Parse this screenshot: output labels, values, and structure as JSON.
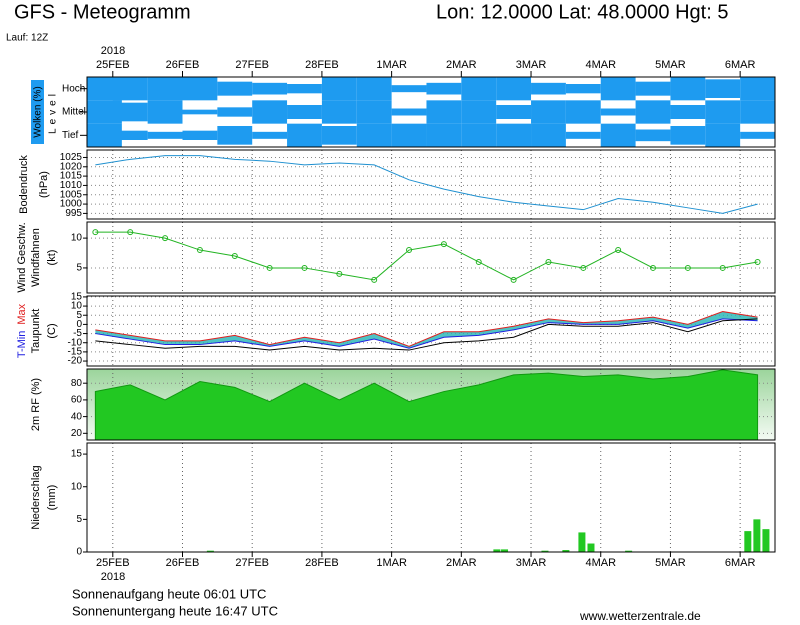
{
  "header": {
    "title": "GFS - Meteogramm",
    "location": "Lon: 12.0000 Lat: 48.0000 Hgt: 5",
    "run": "Lauf: 12Z"
  },
  "time_axis": {
    "year": "2018",
    "xlim": [
      -0.37,
      9.5
    ],
    "xticks": [
      {
        "value": 0,
        "label": "25FEB"
      },
      {
        "value": 1,
        "label": "26FEB"
      },
      {
        "value": 2,
        "label": "27FEB"
      },
      {
        "value": 3,
        "label": "28FEB"
      },
      {
        "value": 4,
        "label": "1MAR"
      },
      {
        "value": 5,
        "label": "2MAR"
      },
      {
        "value": 6,
        "label": "3MAR"
      },
      {
        "value": 7,
        "label": "4MAR"
      },
      {
        "value": 8,
        "label": "5MAR"
      },
      {
        "value": 9,
        "label": "6MAR"
      }
    ]
  },
  "chart_data": [
    {
      "type": "cloud",
      "ylabel": "Wolken (%)",
      "level_label": "Level",
      "color": "#1e9bf0",
      "x": [
        -0.25,
        0.25,
        0.75,
        1.25,
        1.75,
        2.25,
        2.75,
        3.25,
        3.75,
        4.25,
        4.75,
        5.25,
        5.75,
        6.25,
        6.75,
        7.25,
        7.75,
        8.25,
        8.75,
        9.25
      ],
      "series": [
        {
          "name": "Hoch",
          "values": [
            100,
            100,
            100,
            100,
            60,
            50,
            40,
            100,
            100,
            30,
            50,
            100,
            100,
            50,
            40,
            100,
            60,
            100,
            80,
            100
          ]
        },
        {
          "name": "Mittel",
          "values": [
            100,
            80,
            100,
            20,
            40,
            100,
            60,
            100,
            100,
            30,
            100,
            100,
            60,
            100,
            100,
            30,
            100,
            60,
            100,
            100
          ]
        },
        {
          "name": "Tief",
          "values": [
            100,
            40,
            30,
            40,
            80,
            30,
            100,
            80,
            100,
            100,
            100,
            100,
            100,
            100,
            30,
            100,
            50,
            80,
            100,
            30
          ]
        }
      ]
    },
    {
      "type": "line",
      "ylabel": "Bodendruck",
      "unit": "(hPa)",
      "color": "#1e90d0",
      "ylim": [
        992,
        1029
      ],
      "yticks": [
        995,
        1000,
        1005,
        1010,
        1015,
        1020,
        1025
      ],
      "x": [
        -0.25,
        0.25,
        0.75,
        1.25,
        1.75,
        2.25,
        2.75,
        3.25,
        3.75,
        4.25,
        4.75,
        5.25,
        5.75,
        6.25,
        6.75,
        7.25,
        7.75,
        8.25,
        8.75,
        9.25
      ],
      "values": [
        1021,
        1024,
        1026,
        1026,
        1024,
        1023,
        1021,
        1022,
        1021,
        1013,
        1008,
        1004,
        1001,
        999,
        997,
        1003,
        1001,
        998,
        995,
        1000
      ]
    },
    {
      "type": "wind",
      "ylabel2": "Windfahnen",
      "unit": "(kt)",
      "ylim": [
        0.8,
        12.7
      ],
      "yticks": [
        5,
        10
      ],
      "x": [
        -0.25,
        0.25,
        0.75,
        1.25,
        1.75,
        2.25,
        2.75,
        3.25,
        3.75,
        4.25,
        4.75,
        5.25,
        5.75,
        6.25,
        6.75,
        7.25,
        7.75,
        8.25,
        8.75,
        9.25
      ],
      "series": [
        {
          "name": "Wind Geschw.",
          "color": "#22b422",
          "values": [
            11,
            11,
            10,
            8,
            7,
            5,
            5,
            4,
            3,
            8,
            9,
            6,
            3,
            6,
            5,
            8,
            5,
            5,
            5,
            6
          ]
        }
      ]
    },
    {
      "type": "temperature",
      "ylabel2": "Taupunkt",
      "unit": "(C)",
      "ylim": [
        -22.7,
        15.5
      ],
      "yticks": [
        -20,
        -15,
        -10,
        -5,
        0,
        5,
        10,
        15
      ],
      "fill": "#22b4b4",
      "x": [
        -0.25,
        0.25,
        0.75,
        1.25,
        1.75,
        2.25,
        2.75,
        3.25,
        3.75,
        4.25,
        4.75,
        5.25,
        5.75,
        6.25,
        6.75,
        7.25,
        7.75,
        8.25,
        8.75,
        9.25
      ],
      "series": [
        {
          "name": "T-Min",
          "color": "#2020e0",
          "values": [
            -5,
            -8,
            -11,
            -11,
            -9,
            -12,
            -9,
            -12,
            -8,
            -13,
            -7,
            -6,
            -3,
            1,
            0,
            0,
            2,
            -2,
            3,
            2
          ]
        },
        {
          "name": "Max",
          "color": "#e02020",
          "values": [
            -3,
            -6,
            -9,
            -9,
            -6,
            -11,
            -7,
            -10,
            -5,
            -12,
            -4,
            -4,
            -1,
            3,
            1,
            2,
            4,
            0,
            7,
            4
          ]
        },
        {
          "name": "Taupunkt",
          "color": "#000000",
          "values": [
            -9,
            -11,
            -13,
            -12,
            -12,
            -14,
            -12,
            -14,
            -13,
            -14,
            -10,
            -9,
            -7,
            0,
            -1,
            -1,
            1,
            -4,
            2,
            3
          ]
        }
      ]
    },
    {
      "type": "area",
      "ylabel": "2m RF (%)",
      "color": "#22c822",
      "ylim": [
        12,
        97
      ],
      "yticks": [
        20,
        40,
        60,
        80
      ],
      "x": [
        -0.25,
        0.25,
        0.75,
        1.25,
        1.75,
        2.25,
        2.75,
        3.25,
        3.75,
        4.25,
        4.75,
        5.25,
        5.75,
        6.25,
        6.75,
        7.25,
        7.75,
        8.25,
        8.75,
        9.25
      ],
      "values": [
        70,
        78,
        60,
        82,
        75,
        58,
        80,
        60,
        80,
        58,
        70,
        78,
        90,
        92,
        88,
        90,
        85,
        88,
        96,
        90
      ]
    },
    {
      "type": "bar",
      "ylabel": "Niederschlag",
      "unit": "(mm)",
      "color": "#22c822",
      "ylim": [
        0,
        16.7
      ],
      "yticks": [
        0,
        5,
        10,
        15
      ],
      "x": [
        1.4,
        5.51,
        5.62,
        6.2,
        6.5,
        6.73,
        6.86,
        7.4,
        9.11,
        9.24,
        9.37
      ],
      "values": [
        0.2,
        0.4,
        0.4,
        0.2,
        0.3,
        3,
        1.3,
        0.2,
        3.2,
        5,
        3.5
      ]
    }
  ],
  "footer": {
    "sunrise": "Sonnenaufgang heute 06:01 UTC",
    "sunset": "Sonnenuntergang heute 16:47 UTC",
    "site": "www.wetterzentrale.de"
  }
}
